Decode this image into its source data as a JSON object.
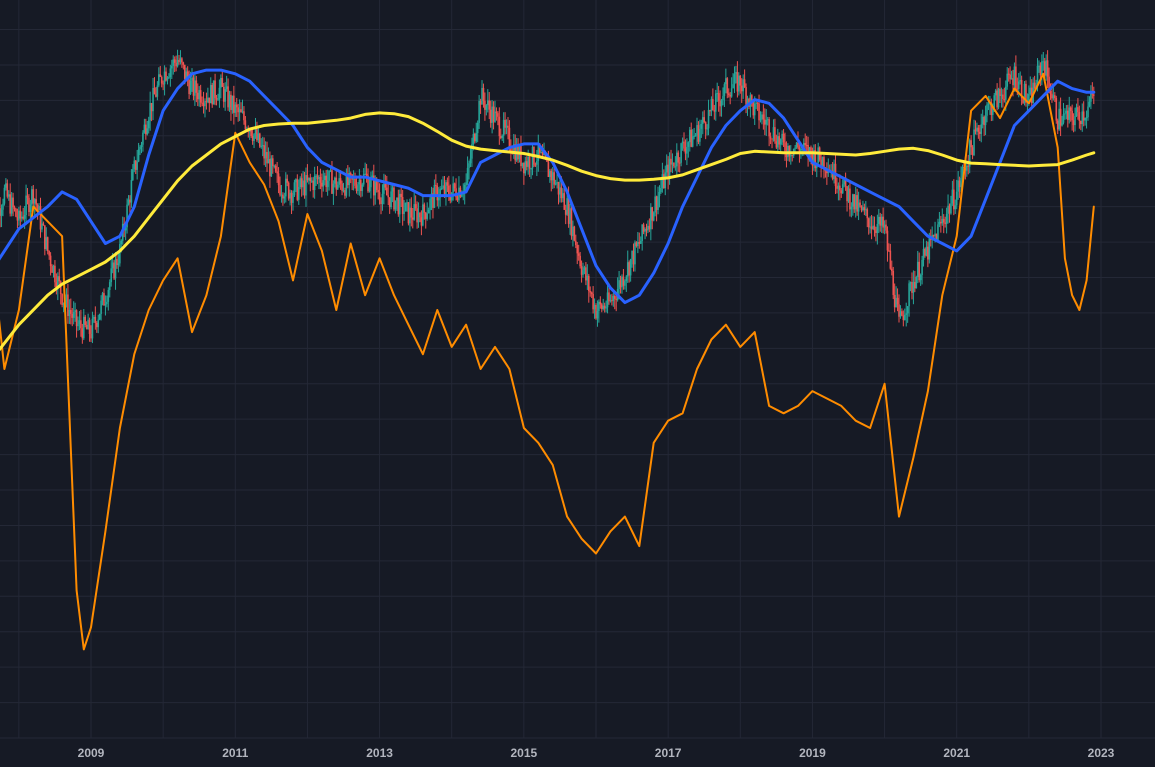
{
  "chart_data": {
    "type": "line",
    "title": "",
    "xlabel": "",
    "ylabel": "",
    "xlim": [
      2007.6,
      2023.5
    ],
    "ylim": [
      0,
      100
    ],
    "x_ticks": [
      "2009",
      "2011",
      "2013",
      "2015",
      "2017",
      "2019",
      "2021",
      "2023"
    ],
    "grid": true,
    "legend": "none",
    "colors": {
      "background": "#161a25",
      "grid": "#242836",
      "candle_up": "#26a69a",
      "candle_down": "#ef5350",
      "blue_line": "#2962ff",
      "yellow_line": "#ffeb3b",
      "orange_line": "#ff8c00",
      "tick_text": "#b2b5be"
    },
    "series": [
      {
        "style": "candlestick",
        "color": "#26a69a",
        "x": [
          2007.6,
          2007.8,
          2008.0,
          2008.2,
          2008.4,
          2008.6,
          2008.8,
          2009.0,
          2009.2,
          2009.4,
          2009.6,
          2009.8,
          2010.0,
          2010.2,
          2010.4,
          2010.6,
          2010.8,
          2011.0,
          2011.2,
          2011.4,
          2011.6,
          2011.8,
          2012.0,
          2012.2,
          2012.4,
          2012.6,
          2012.8,
          2013.0,
          2013.2,
          2013.4,
          2013.6,
          2013.8,
          2014.0,
          2014.2,
          2014.4,
          2014.6,
          2014.8,
          2015.0,
          2015.2,
          2015.4,
          2015.6,
          2015.8,
          2016.0,
          2016.2,
          2016.4,
          2016.6,
          2016.8,
          2017.0,
          2017.2,
          2017.4,
          2017.6,
          2017.8,
          2018.0,
          2018.2,
          2018.4,
          2018.6,
          2018.8,
          2019.0,
          2019.2,
          2019.4,
          2019.6,
          2019.8,
          2020.0,
          2020.2,
          2020.4,
          2020.6,
          2020.8,
          2021.0,
          2021.2,
          2021.4,
          2021.6,
          2021.8,
          2022.0,
          2022.2,
          2022.4,
          2022.6,
          2022.8,
          2022.9
        ],
        "values": [
          68,
          74,
          70,
          74,
          66,
          60,
          56,
          55,
          60,
          66,
          77,
          85,
          90,
          92,
          88,
          87,
          88,
          85,
          83,
          79,
          75,
          74,
          75,
          76,
          75,
          75,
          76,
          74,
          73,
          71,
          71,
          74,
          74,
          75,
          87,
          84,
          81,
          78,
          79,
          76,
          72,
          64,
          58,
          59,
          63,
          67,
          72,
          77,
          80,
          82,
          85,
          88,
          89,
          85,
          83,
          80,
          80,
          79,
          78,
          75,
          72,
          70,
          69,
          56,
          62,
          66,
          70,
          74,
          80,
          85,
          87,
          90,
          86,
          92,
          84,
          84,
          85,
          87
        ]
      },
      {
        "style": "line",
        "color": "#2962ff",
        "x": [
          2007.6,
          2008.0,
          2008.4,
          2008.6,
          2008.8,
          2009.0,
          2009.2,
          2009.4,
          2009.6,
          2009.8,
          2010.0,
          2010.2,
          2010.4,
          2010.6,
          2010.8,
          2011.0,
          2011.2,
          2011.4,
          2011.6,
          2011.8,
          2012.0,
          2012.2,
          2012.4,
          2012.6,
          2012.8,
          2013.0,
          2013.2,
          2013.4,
          2013.6,
          2013.8,
          2014.0,
          2014.2,
          2014.4,
          2014.6,
          2014.8,
          2015.0,
          2015.2,
          2015.4,
          2015.6,
          2015.8,
          2016.0,
          2016.2,
          2016.4,
          2016.6,
          2016.8,
          2017.0,
          2017.2,
          2017.4,
          2017.6,
          2017.8,
          2018.0,
          2018.2,
          2018.4,
          2018.6,
          2018.8,
          2019.0,
          2019.2,
          2019.4,
          2019.6,
          2019.8,
          2020.0,
          2020.2,
          2020.4,
          2020.6,
          2020.8,
          2021.0,
          2021.2,
          2021.4,
          2021.6,
          2021.8,
          2022.0,
          2022.2,
          2022.4,
          2022.6,
          2022.8,
          2022.9
        ],
        "values": [
          63,
          69,
          72,
          74,
          73,
          70,
          67,
          68,
          72,
          79,
          85,
          88,
          90,
          90.5,
          90.5,
          90,
          89,
          87,
          85,
          83,
          80,
          78,
          77,
          76,
          76,
          75.5,
          75,
          74.5,
          73.5,
          73.5,
          73.5,
          74,
          78,
          79,
          80,
          80.5,
          80.5,
          78,
          74,
          69,
          64,
          61,
          59,
          60,
          63,
          67,
          72,
          76,
          80,
          83,
          85,
          86.5,
          86,
          84,
          81,
          78,
          77,
          76,
          75,
          74,
          73,
          72,
          70,
          68,
          67,
          66,
          68,
          73,
          78,
          83,
          85,
          87,
          89,
          88,
          87.5,
          87.5
        ]
      },
      {
        "style": "line",
        "color": "#ffeb3b",
        "x": [
          2007.6,
          2008.0,
          2008.4,
          2008.6,
          2008.8,
          2009.0,
          2009.2,
          2009.4,
          2009.6,
          2009.8,
          2010.0,
          2010.2,
          2010.4,
          2010.6,
          2010.8,
          2011.0,
          2011.2,
          2011.4,
          2011.6,
          2011.8,
          2012.0,
          2012.2,
          2012.4,
          2012.6,
          2012.8,
          2013.0,
          2013.2,
          2013.4,
          2013.6,
          2013.8,
          2014.0,
          2014.2,
          2014.4,
          2014.6,
          2014.8,
          2015.0,
          2015.2,
          2015.4,
          2015.6,
          2015.8,
          2016.0,
          2016.2,
          2016.4,
          2016.6,
          2016.8,
          2017.0,
          2017.2,
          2017.4,
          2017.6,
          2017.8,
          2018.0,
          2018.2,
          2018.4,
          2018.6,
          2018.8,
          2019.0,
          2019.2,
          2019.4,
          2019.6,
          2019.8,
          2020.0,
          2020.2,
          2020.4,
          2020.6,
          2020.8,
          2021.0,
          2021.2,
          2021.4,
          2021.6,
          2021.8,
          2022.0,
          2022.2,
          2022.4,
          2022.6,
          2022.8,
          2022.9
        ],
        "values": [
          51,
          56,
          60,
          61.5,
          62.5,
          63.5,
          64.5,
          66,
          68,
          70.5,
          73,
          75.5,
          77.5,
          79,
          80.5,
          81.5,
          82.5,
          83,
          83.2,
          83.3,
          83.3,
          83.5,
          83.7,
          84,
          84.5,
          84.7,
          84.6,
          84.2,
          83.3,
          82.2,
          81,
          80.2,
          79.8,
          79.6,
          79.4,
          79.2,
          78.8,
          78.3,
          77.6,
          76.8,
          76.2,
          75.8,
          75.6,
          75.6,
          75.7,
          75.9,
          76.3,
          77,
          77.7,
          78.4,
          79.2,
          79.5,
          79.4,
          79.3,
          79.3,
          79.3,
          79.2,
          79.1,
          79,
          79.2,
          79.5,
          79.8,
          79.9,
          79.6,
          79.0,
          78.3,
          77.9,
          77.8,
          77.7,
          77.6,
          77.5,
          77.6,
          77.7,
          78.3,
          79.0,
          79.3
        ]
      },
      {
        "style": "line",
        "color": "#ff8c00",
        "x": [
          2007.6,
          2007.8,
          2008.0,
          2008.2,
          2008.4,
          2008.6,
          2008.8,
          2008.9,
          2009.0,
          2009.2,
          2009.4,
          2009.6,
          2009.8,
          2010.0,
          2010.2,
          2010.4,
          2010.6,
          2010.8,
          2011.0,
          2011.2,
          2011.4,
          2011.6,
          2011.8,
          2012.0,
          2012.2,
          2012.4,
          2012.6,
          2012.8,
          2013.0,
          2013.2,
          2013.4,
          2013.6,
          2013.8,
          2014.0,
          2014.2,
          2014.4,
          2014.6,
          2014.8,
          2015.0,
          2015.2,
          2015.4,
          2015.6,
          2015.8,
          2016.0,
          2016.2,
          2016.4,
          2016.6,
          2016.8,
          2017.0,
          2017.2,
          2017.4,
          2017.6,
          2017.8,
          2018.0,
          2018.2,
          2018.4,
          2018.6,
          2018.8,
          2019.0,
          2019.2,
          2019.4,
          2019.6,
          2019.8,
          2020.0,
          2020.2,
          2020.4,
          2020.6,
          2020.8,
          2021.0,
          2021.2,
          2021.4,
          2021.6,
          2021.8,
          2022.0,
          2022.2,
          2022.4,
          2022.5,
          2022.6,
          2022.7,
          2022.8,
          2022.9
        ],
        "values": [
          68,
          50,
          58,
          72,
          70,
          68,
          20,
          12,
          15,
          28,
          42,
          52,
          58,
          62,
          65,
          55,
          60,
          68,
          82,
          78,
          75,
          70,
          62,
          71,
          66,
          58,
          67,
          60,
          65,
          60,
          56,
          52,
          58,
          53,
          56,
          50,
          53,
          50,
          42,
          40,
          37,
          30,
          27,
          25,
          28,
          30,
          26,
          40,
          43,
          44,
          50,
          54,
          56,
          53,
          55,
          45,
          44,
          45,
          47,
          46,
          45,
          43,
          42,
          48,
          30,
          38,
          47,
          60,
          68,
          85,
          87,
          84,
          88,
          86,
          90,
          80,
          65,
          60,
          58,
          62,
          72
        ]
      }
    ]
  }
}
